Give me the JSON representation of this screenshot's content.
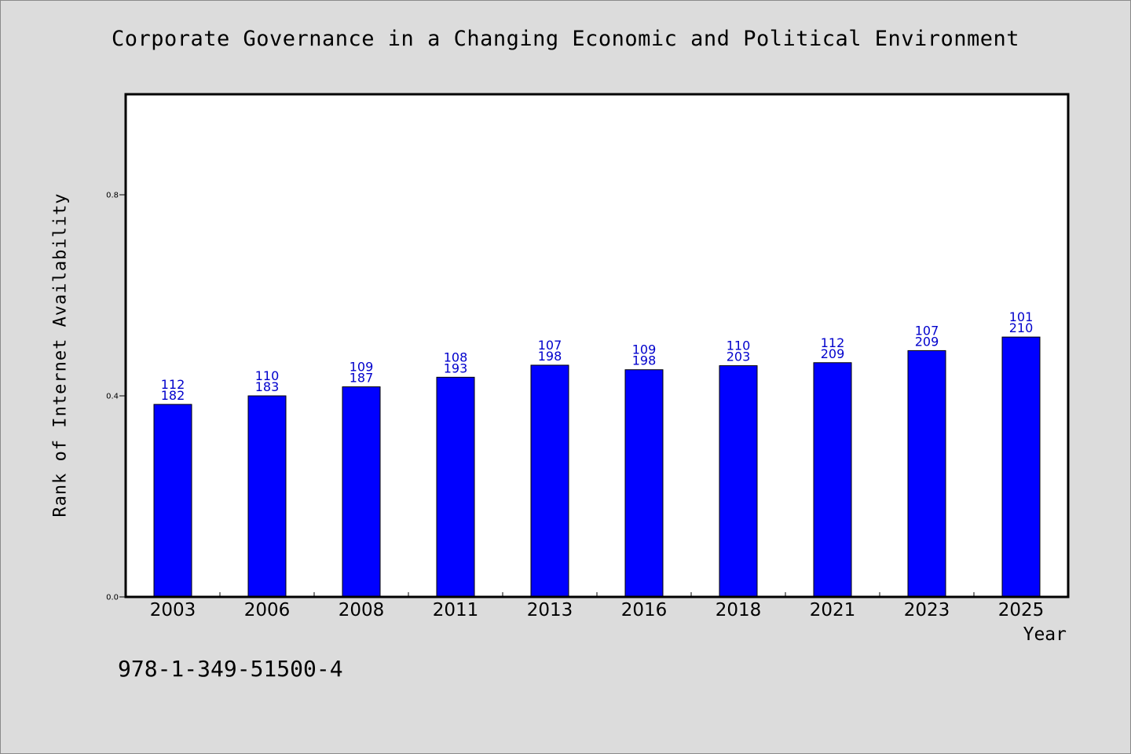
{
  "chart_data": {
    "type": "bar",
    "title": "Corporate Governance in a Changing Economic and Political Environment",
    "xlabel": "Year",
    "ylabel": "Rank of Internet Availability",
    "categories": [
      "2003",
      "2006",
      "2008",
      "2011",
      "2013",
      "2016",
      "2018",
      "2021",
      "2023",
      "2025"
    ],
    "values": [
      0.383,
      0.4,
      0.418,
      0.437,
      0.461,
      0.452,
      0.46,
      0.466,
      0.49,
      0.517
    ],
    "data_labels_top": [
      "112",
      "110",
      "109",
      "108",
      "107",
      "109",
      "110",
      "112",
      "107",
      "101"
    ],
    "data_labels_bottom": [
      "182",
      "183",
      "187",
      "193",
      "198",
      "198",
      "203",
      "209",
      "209",
      "210"
    ],
    "ylim": [
      0,
      1.0
    ],
    "yticks": [
      0.0,
      0.4,
      0.8
    ],
    "ytick_labels": [
      "0.0",
      "0.4",
      "0.8"
    ],
    "grid": false,
    "legend": "none",
    "colors": {
      "bar": "#0000ff",
      "data_label": "#0000cc",
      "plot_background": "#ffffff",
      "page_background": "#dcdcdc"
    }
  },
  "footer": {
    "isbn": "978-1-349-51500-4"
  }
}
